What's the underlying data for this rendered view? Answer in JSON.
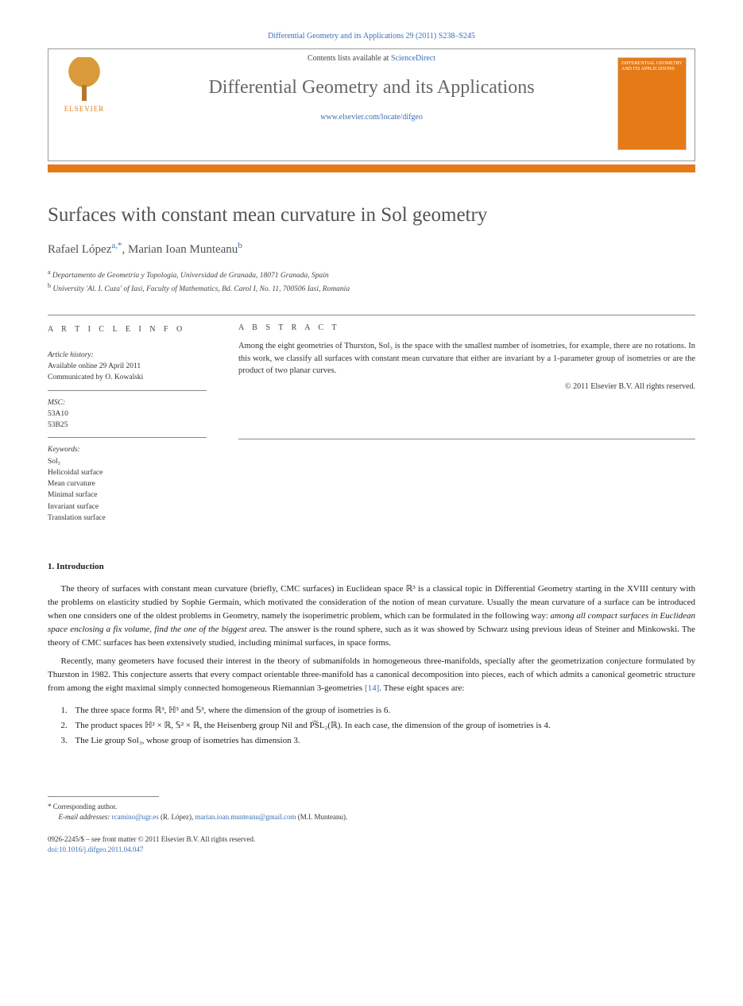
{
  "top_reference": "Differential Geometry and its Applications 29 (2011) S238–S245",
  "header": {
    "contents_text": "Contents lists available at ",
    "contents_link": "ScienceDirect",
    "journal_title": "Differential Geometry and its Applications",
    "journal_url": "www.elsevier.com/locate/difgeo",
    "publisher": "ELSEVIER",
    "cover_text": "DIFFERENTIAL GEOMETRY AND ITS APPLICATIONS"
  },
  "article": {
    "title": "Surfaces with constant mean curvature in Sol geometry",
    "authors": [
      {
        "name": "Rafael López",
        "marks": "a,*"
      },
      {
        "name": "Marian Ioan Munteanu",
        "marks": "b"
      }
    ],
    "affiliations": [
      {
        "mark": "a",
        "text": "Departamento de Geometría y Topología, Universidad de Granada, 18071 Granada, Spain"
      },
      {
        "mark": "b",
        "text": "University 'Al. I. Cuza' of Iasi, Faculty of Mathematics, Bd. Carol I, No. 11, 700506 Iasi, Romania"
      }
    ]
  },
  "info": {
    "label_info": "A R T I C L E   I N F O",
    "label_abstract": "A B S T R A C T",
    "history_label": "Article history:",
    "history_lines": [
      "Available online 29 April 2011",
      "Communicated by O. Kowalski"
    ],
    "msc_label": "MSC:",
    "msc": [
      "53A10",
      "53B25"
    ],
    "keywords_label": "Keywords:",
    "keywords": [
      "Sol₃",
      "Helicoidal surface",
      "Mean curvature",
      "Minimal surface",
      "Invariant surface",
      "Translation surface"
    ],
    "abstract": "Among the eight geometries of Thurston, Sol₃ is the space with the smallest number of isometries, for example, there are no rotations. In this work, we classify all surfaces with constant mean curvature that either are invariant by a 1-parameter group of isometries or are the product of two planar curves.",
    "copyright": "© 2011 Elsevier B.V. All rights reserved."
  },
  "section1": {
    "heading": "1. Introduction",
    "p1": "The theory of surfaces with constant mean curvature (briefly, CMC surfaces) in Euclidean space ℝ³ is a classical topic in Differential Geometry starting in the XVIII century with the problems on elasticity studied by Sophie Germain, which motivated the consideration of the notion of mean curvature. Usually the mean curvature of a surface can be introduced when one considers one of the oldest problems in Geometry, namely the isoperimetric problem, which can be formulated in the following way: among all compact surfaces in Euclidean space enclosing a fix volume, find the one of the biggest area. The answer is the round sphere, such as it was showed by Schwarz using previous ideas of Steiner and Minkowski. The theory of CMC surfaces has been extensively studied, including minimal surfaces, in space forms.",
    "p1_italic": "among all compact surfaces in Euclidean space enclosing a fix volume, find the one of the biggest area.",
    "p2": "Recently, many geometers have focused their interest in the theory of submanifolds in homogeneous three-manifolds, specially after the geometrization conjecture formulated by Thurston in 1982. This conjecture asserts that every compact orientable three-manifold has a canonical decomposition into pieces, each of which admits a canonical geometric structure from among the eight maximal simply connected homogeneous Riemannian 3-geometries ",
    "p2_cite": "[14]",
    "p2_tail": ". These eight spaces are:",
    "items": [
      "The three space forms ℝ³, ℍ³ and 𝕊³, where the dimension of the group of isometries is 6.",
      "The product spaces ℍ² × ℝ, 𝕊² × ℝ, the Heisenberg group Nil and P͠SL₂(ℝ). In each case, the dimension of the group of isometries is 4.",
      "The Lie group Sol₃, whose group of isometries has dimension 3."
    ]
  },
  "footnote": {
    "corr": "* Corresponding author.",
    "email_label": "E-mail addresses:",
    "emails": [
      {
        "addr": "rcamino@ugr.es",
        "who": "(R. López)"
      },
      {
        "addr": "marian.ioan.munteanu@gmail.com",
        "who": "(M.I. Munteanu)"
      }
    ]
  },
  "bottom": {
    "line1": "0926-2245/$ – see front matter © 2011 Elsevier B.V. All rights reserved.",
    "doi_label": "doi:",
    "doi": "10.1016/j.difgeo.2011.04.047"
  },
  "colors": {
    "accent_orange": "#e67a17",
    "link_blue": "#3a6fb5",
    "text_gray": "#525252",
    "rule_gray": "#888888"
  }
}
